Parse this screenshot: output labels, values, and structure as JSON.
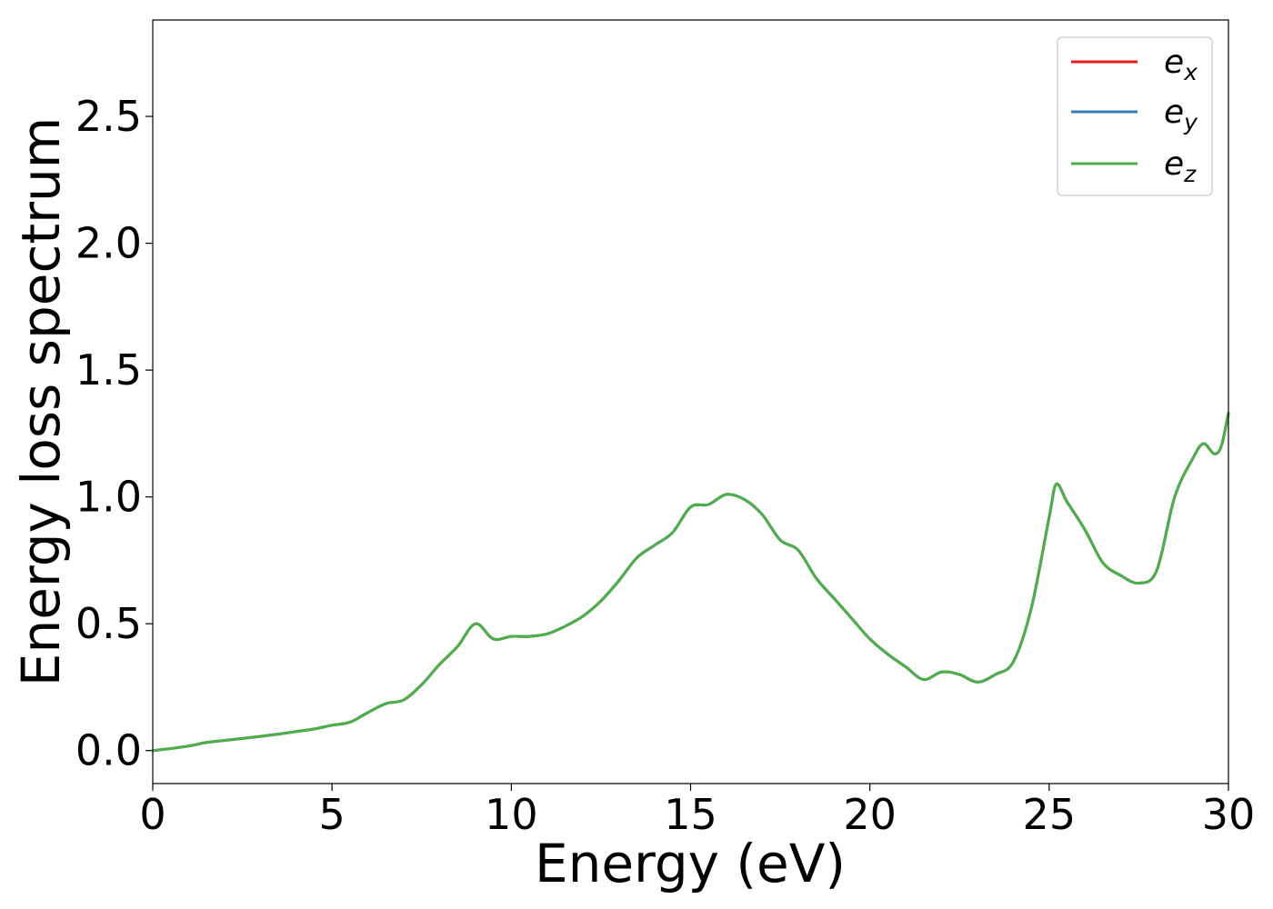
{
  "chart_data": {
    "type": "line",
    "xlabel": "Energy (eV)",
    "ylabel": "Energy loss spectrum",
    "xlim": [
      0,
      30
    ],
    "ylim": [
      -0.13,
      2.88
    ],
    "xticks": [
      0,
      5,
      10,
      15,
      20,
      25,
      30
    ],
    "xtick_labels": [
      "0",
      "5",
      "10",
      "15",
      "20",
      "25",
      "30"
    ],
    "yticks": [
      0.0,
      0.5,
      1.0,
      1.5,
      2.0,
      2.5
    ],
    "ytick_labels": [
      "0.0",
      "0.5",
      "1.0",
      "1.5",
      "2.0",
      "2.5"
    ],
    "grid": false,
    "legend_position": "top-right",
    "x": [
      0,
      0.5,
      1.0,
      1.5,
      2.0,
      2.5,
      3.0,
      3.5,
      4.0,
      4.5,
      5.0,
      5.5,
      6.0,
      6.5,
      7.0,
      7.5,
      8.0,
      8.5,
      9.0,
      9.5,
      10.0,
      10.5,
      11.0,
      11.5,
      12.0,
      12.5,
      13.0,
      13.5,
      14.0,
      14.5,
      15.0,
      15.5,
      16.0,
      16.5,
      17.0,
      17.5,
      18.0,
      18.5,
      19.0,
      19.5,
      20.0,
      20.5,
      21.0,
      21.5,
      22.0,
      22.5,
      23.0,
      23.5,
      24.0,
      24.5,
      25.0,
      25.2,
      25.5,
      26.0,
      26.5,
      27.0,
      27.5,
      28.0,
      28.5,
      29.0,
      29.3,
      29.6,
      29.8,
      30.0
    ],
    "series": [
      {
        "name": "e",
        "subscript": "x",
        "color": "#e41a1c",
        "values": [
          0.0,
          0.008,
          0.018,
          0.032,
          0.04,
          0.048,
          0.056,
          0.065,
          0.075,
          0.085,
          0.1,
          0.112,
          0.15,
          0.185,
          0.2,
          0.26,
          0.34,
          0.41,
          0.5,
          0.44,
          0.45,
          0.45,
          0.46,
          0.49,
          0.53,
          0.59,
          0.67,
          0.76,
          0.81,
          0.86,
          0.96,
          0.97,
          1.01,
          0.99,
          0.93,
          0.83,
          0.79,
          0.68,
          0.6,
          0.52,
          0.44,
          0.38,
          0.33,
          0.28,
          0.31,
          0.3,
          0.27,
          0.3,
          0.35,
          0.56,
          0.92,
          1.05,
          0.98,
          0.87,
          0.74,
          0.69,
          0.66,
          0.71,
          1.0,
          1.15,
          1.21,
          1.17,
          1.2,
          1.33
        ]
      },
      {
        "name": "e",
        "subscript": "y",
        "color": "#377eb8",
        "values": [
          0.0,
          0.008,
          0.018,
          0.032,
          0.04,
          0.048,
          0.056,
          0.065,
          0.075,
          0.085,
          0.1,
          0.112,
          0.15,
          0.185,
          0.2,
          0.26,
          0.34,
          0.41,
          0.5,
          0.44,
          0.45,
          0.45,
          0.46,
          0.49,
          0.53,
          0.59,
          0.67,
          0.76,
          0.81,
          0.86,
          0.96,
          0.97,
          1.01,
          0.99,
          0.93,
          0.83,
          0.79,
          0.68,
          0.6,
          0.52,
          0.44,
          0.38,
          0.33,
          0.28,
          0.31,
          0.3,
          0.27,
          0.3,
          0.35,
          0.56,
          0.92,
          1.05,
          0.98,
          0.87,
          0.74,
          0.69,
          0.66,
          0.71,
          1.0,
          1.15,
          1.21,
          1.17,
          1.2,
          1.33
        ]
      },
      {
        "name": "e",
        "subscript": "z",
        "color": "#4daf4a",
        "values": [
          0.0,
          0.008,
          0.018,
          0.032,
          0.04,
          0.048,
          0.056,
          0.065,
          0.075,
          0.085,
          0.1,
          0.112,
          0.15,
          0.185,
          0.2,
          0.26,
          0.34,
          0.41,
          0.5,
          0.44,
          0.45,
          0.45,
          0.46,
          0.49,
          0.53,
          0.59,
          0.67,
          0.76,
          0.81,
          0.86,
          0.96,
          0.97,
          1.01,
          0.99,
          0.93,
          0.83,
          0.79,
          0.68,
          0.6,
          0.52,
          0.44,
          0.38,
          0.33,
          0.28,
          0.31,
          0.3,
          0.27,
          0.3,
          0.35,
          0.56,
          0.92,
          1.05,
          0.98,
          0.87,
          0.74,
          0.69,
          0.66,
          0.71,
          1.0,
          1.15,
          1.21,
          1.17,
          1.2,
          1.33
        ]
      }
    ]
  }
}
